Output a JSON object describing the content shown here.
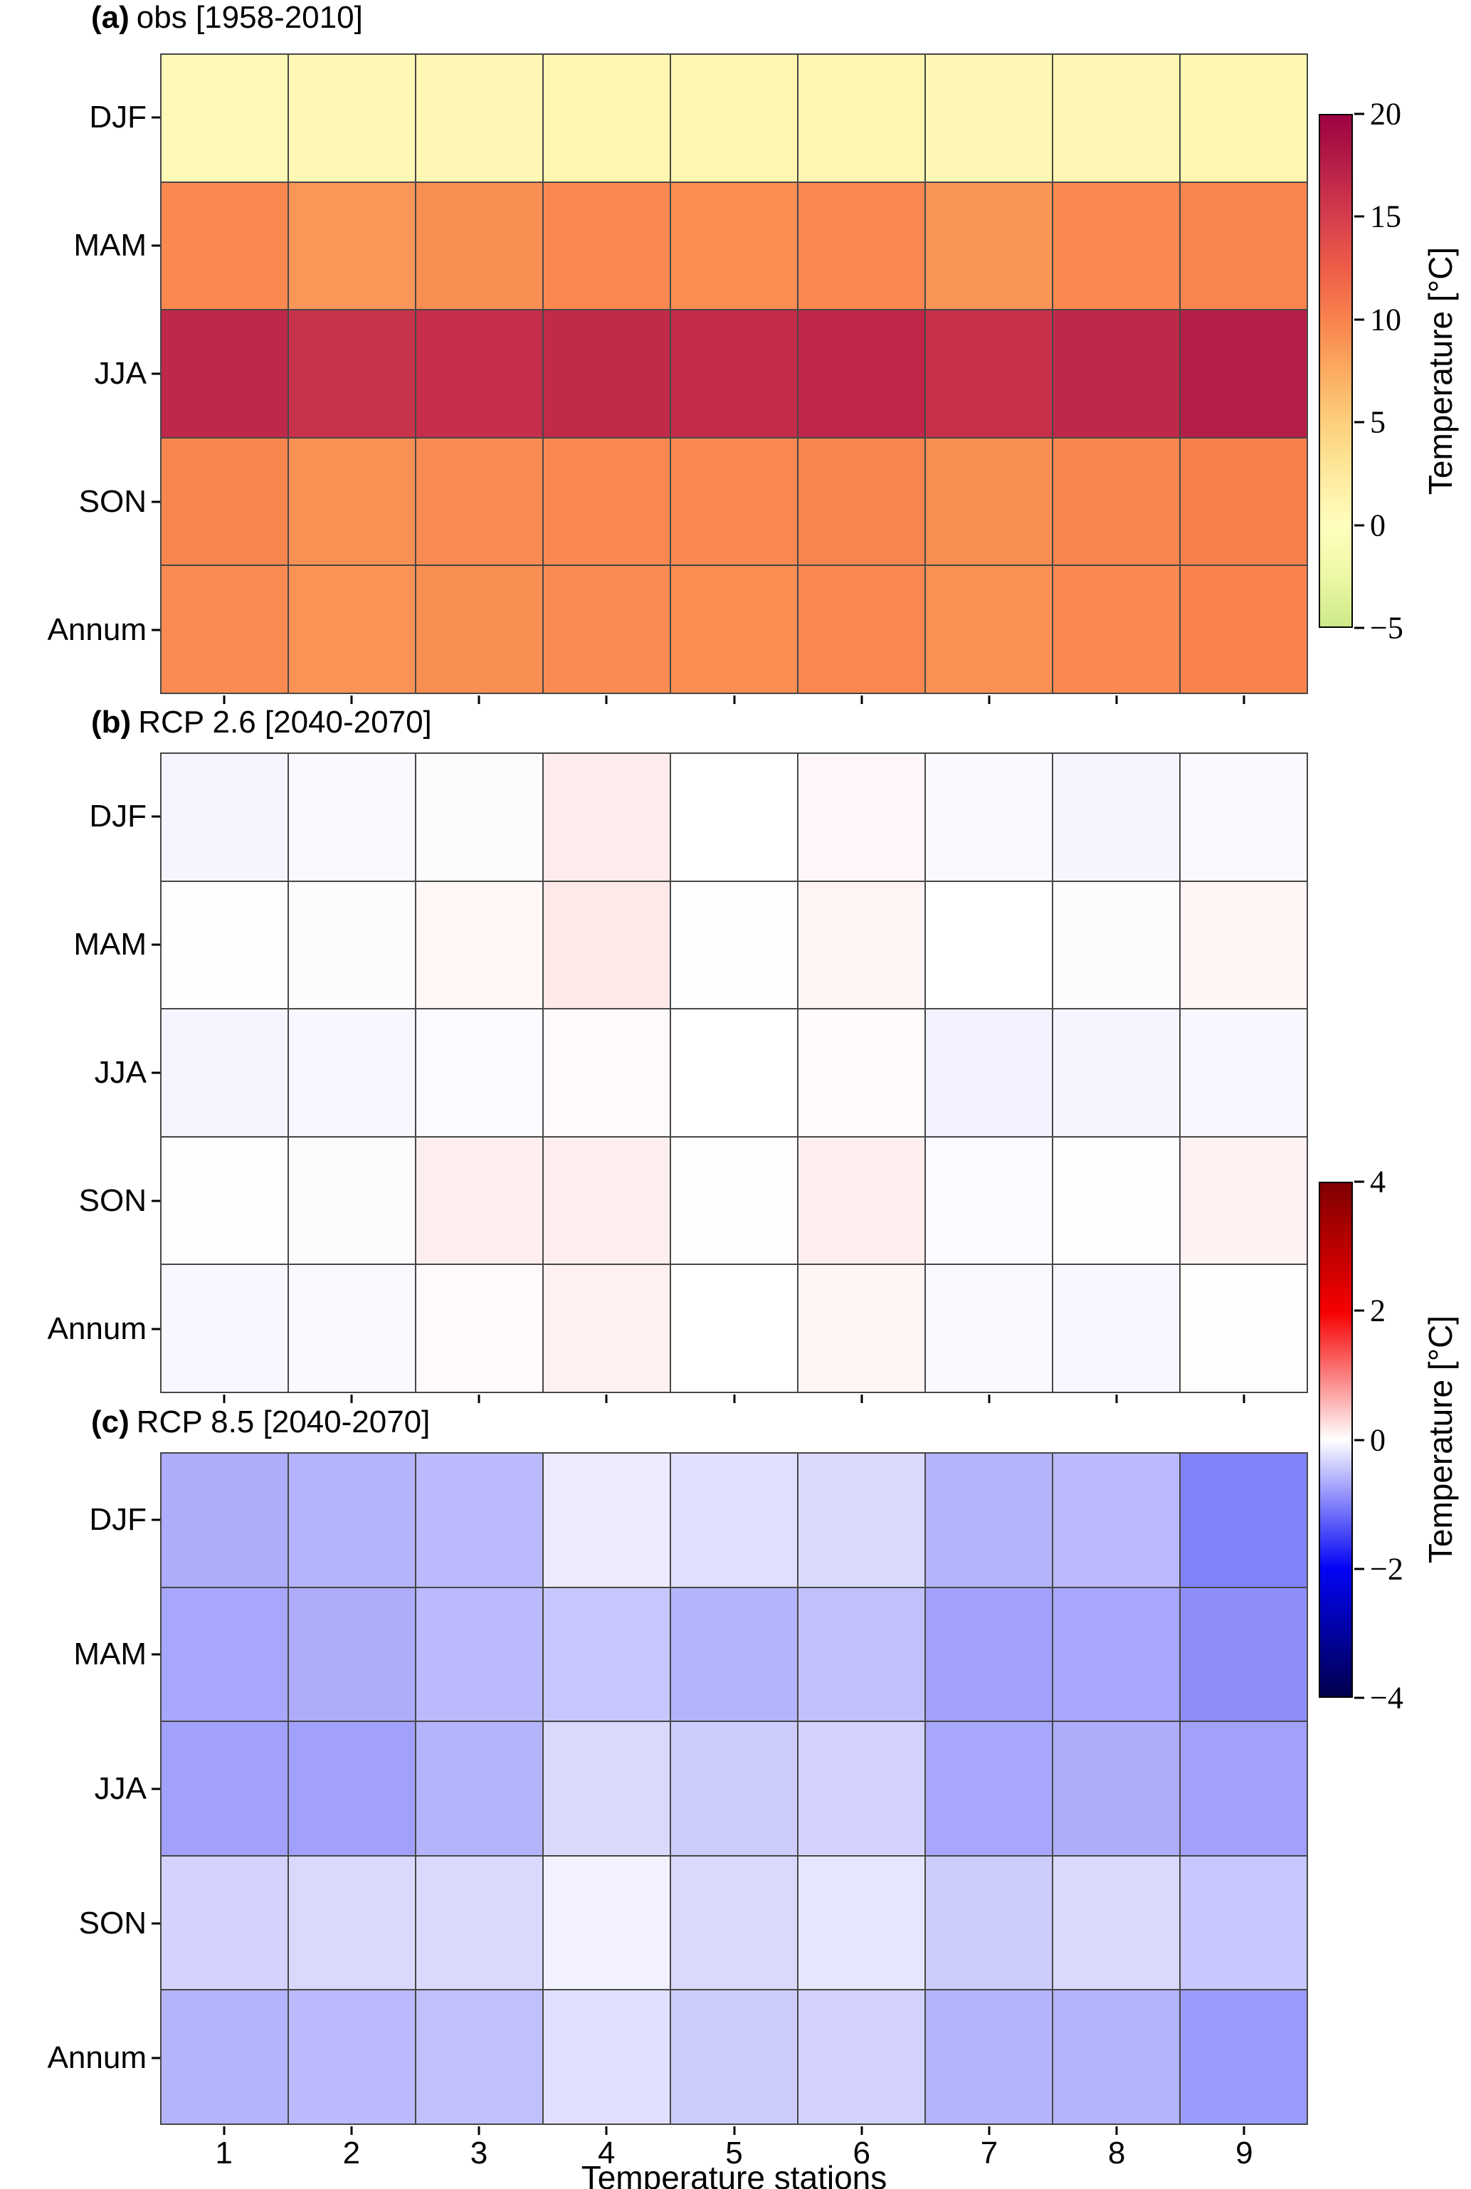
{
  "xlabel": "Temperature stations",
  "chart_data": [
    {
      "id": "a",
      "type": "heatmap",
      "title": "(a) obs [1958-2010]",
      "title_prefix": "(a)",
      "title_text": "obs [1958-2010]",
      "rows": [
        "DJF",
        "MAM",
        "JJA",
        "SON",
        "Annum"
      ],
      "columns": [
        "1",
        "2",
        "3",
        "4",
        "5",
        "6",
        "7",
        "8",
        "9"
      ],
      "values": [
        [
          0.6,
          0.7,
          0.8,
          0.9,
          0.9,
          0.9,
          0.8,
          0.8,
          1.0
        ],
        [
          9.6,
          8.8,
          9.3,
          9.6,
          9.4,
          9.7,
          8.9,
          9.6,
          9.9
        ],
        [
          16.8,
          16.0,
          16.4,
          16.6,
          16.5,
          16.9,
          16.2,
          16.8,
          17.6
        ],
        [
          9.8,
          9.2,
          9.5,
          9.7,
          9.6,
          9.9,
          9.3,
          9.9,
          10.2
        ],
        [
          9.5,
          9.0,
          9.3,
          9.5,
          9.4,
          9.7,
          9.1,
          9.6,
          10.0
        ]
      ],
      "vmin": -5,
      "vmax": 20,
      "colormap": "spectral_like",
      "grid": true,
      "units": "°C"
    },
    {
      "id": "b",
      "type": "heatmap",
      "title": "(b) RCP 2.6 [2040-2070]",
      "title_prefix": "(b)",
      "title_text": "RCP 2.6 [2040-2070]",
      "rows": [
        "DJF",
        "MAM",
        "JJA",
        "SON",
        "Annum"
      ],
      "columns": [
        "1",
        "2",
        "3",
        "4",
        "5",
        "6",
        "7",
        "8",
        "9"
      ],
      "values": [
        [
          -0.08,
          -0.05,
          -0.02,
          0.15,
          0.0,
          0.06,
          -0.05,
          -0.08,
          -0.05
        ],
        [
          -0.01,
          -0.02,
          0.07,
          0.18,
          0.02,
          0.09,
          0.0,
          -0.02,
          0.08
        ],
        [
          -0.08,
          -0.06,
          -0.04,
          0.04,
          0.0,
          0.03,
          -0.1,
          -0.08,
          -0.06
        ],
        [
          -0.01,
          -0.02,
          0.13,
          0.13,
          0.02,
          0.13,
          -0.03,
          -0.01,
          0.1
        ],
        [
          -0.06,
          -0.05,
          0.04,
          0.11,
          0.0,
          0.08,
          -0.05,
          -0.06,
          0.02
        ]
      ],
      "vmin": -4,
      "vmax": 4,
      "colormap": "seismic",
      "grid": true,
      "units": "°C"
    },
    {
      "id": "c",
      "type": "heatmap",
      "title": "(c) RCP 8.5 [2040-2070]",
      "title_prefix": "(c)",
      "title_text": "RCP 8.5 [2040-2070]",
      "rows": [
        "DJF",
        "MAM",
        "JJA",
        "SON",
        "Annum"
      ],
      "columns": [
        "1",
        "2",
        "3",
        "4",
        "5",
        "6",
        "7",
        "8",
        "9"
      ],
      "values": [
        [
          -0.65,
          -0.6,
          -0.55,
          -0.15,
          -0.25,
          -0.3,
          -0.6,
          -0.55,
          -1.0
        ],
        [
          -0.7,
          -0.65,
          -0.55,
          -0.45,
          -0.6,
          -0.5,
          -0.75,
          -0.7,
          -0.9
        ],
        [
          -0.75,
          -0.75,
          -0.6,
          -0.3,
          -0.4,
          -0.35,
          -0.7,
          -0.65,
          -0.75
        ],
        [
          -0.35,
          -0.3,
          -0.3,
          -0.1,
          -0.3,
          -0.2,
          -0.4,
          -0.3,
          -0.45
        ],
        [
          -0.6,
          -0.55,
          -0.5,
          -0.25,
          -0.4,
          -0.35,
          -0.6,
          -0.6,
          -0.8
        ]
      ],
      "vmin": -4,
      "vmax": 4,
      "colormap": "seismic",
      "grid": true,
      "units": "°C"
    }
  ],
  "colorbars": [
    {
      "id": "a",
      "label": "Temperature [°C]",
      "vmin": -5,
      "vmax": 20,
      "colormap": "spectral_like",
      "ticks": [
        20,
        15,
        10,
        5,
        0,
        -5
      ],
      "tick_labels": [
        "20",
        "15",
        "10",
        "5",
        "0",
        "−5"
      ]
    },
    {
      "id": "bc",
      "label": "Temperature [°C]",
      "vmin": -4,
      "vmax": 4,
      "colormap": "seismic",
      "ticks": [
        4,
        2,
        0,
        -2,
        -4
      ],
      "tick_labels": [
        "4",
        "2",
        "0",
        "−2",
        "−4"
      ]
    }
  ],
  "colormaps": {
    "spectral_like": [
      {
        "v": -5,
        "c": "#cdea88"
      },
      {
        "v": -2.5,
        "c": "#eef8a6"
      },
      {
        "v": 0,
        "c": "#fffebe"
      },
      {
        "v": 2.5,
        "c": "#fee99c"
      },
      {
        "v": 5,
        "c": "#fdcf7d"
      },
      {
        "v": 7.5,
        "c": "#fcab60"
      },
      {
        "v": 10,
        "c": "#f8834e"
      },
      {
        "v": 12.5,
        "c": "#ee5d47"
      },
      {
        "v": 15,
        "c": "#d53e4e"
      },
      {
        "v": 17.5,
        "c": "#b81f47"
      },
      {
        "v": 20,
        "c": "#9e0142"
      }
    ],
    "seismic": [
      {
        "v": -4,
        "c": "#00004d"
      },
      {
        "v": -2,
        "c": "#0404f6"
      },
      {
        "v": 0,
        "c": "#ffffff"
      },
      {
        "v": 2,
        "c": "#f60000"
      },
      {
        "v": 4,
        "c": "#7f0000"
      }
    ]
  }
}
